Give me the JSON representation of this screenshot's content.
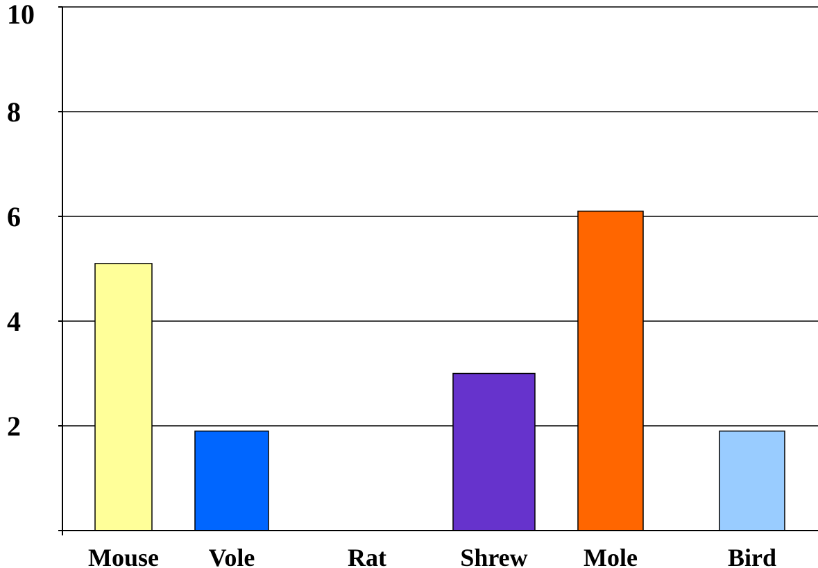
{
  "chart_data": {
    "type": "bar",
    "categories": [
      "Mouse",
      "Vole",
      "Rat",
      "Shrew",
      "Mole",
      "Bird"
    ],
    "values": [
      5.1,
      1.9,
      0,
      3.0,
      6.1,
      1.9
    ],
    "colors": [
      "#ffff99",
      "#0066ff",
      "#ffffff",
      "#6633cc",
      "#ff6600",
      "#99ccff"
    ],
    "ylim": [
      0,
      10
    ],
    "yticks": [
      "2",
      "4",
      "6",
      "8",
      "10"
    ],
    "grid": true,
    "legend": "none",
    "title": "",
    "xlabel": "",
    "ylabel": ""
  }
}
